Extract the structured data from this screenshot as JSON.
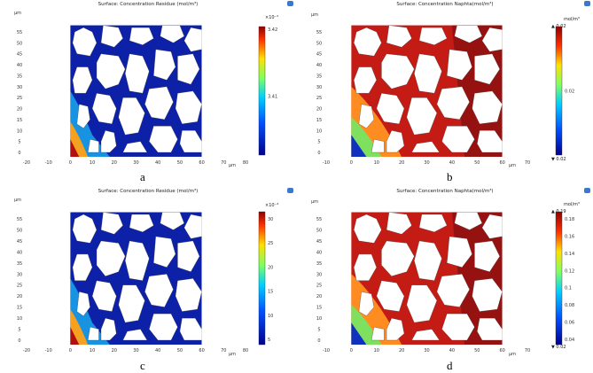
{
  "panels": [
    {
      "id": "a",
      "title": "Surface: Concentration Residue (mol/m³)",
      "unit": "",
      "exponent": "×10⁻²",
      "cb_labels": [
        "3.42",
        "3.41"
      ],
      "cb_min": "",
      "cb_max": "",
      "colormap": "rainbow-blue"
    },
    {
      "id": "b",
      "title": "Surface: Concentration Naphta(mol/m³)",
      "unit": "mol/m³",
      "exponent": "",
      "cb_labels": [
        "0.02"
      ],
      "cb_min": "▼ 0.02",
      "cb_max": "▲ 0.02",
      "colormap": "rainbow-red"
    },
    {
      "id": "c",
      "title": "Surface: Concentration Residue (mol/m³)",
      "unit": "",
      "exponent": "×10⁻³",
      "cb_labels": [
        "30",
        "25",
        "20",
        "15",
        "10",
        "5"
      ],
      "cb_min": "",
      "cb_max": "",
      "colormap": "rainbow-blue"
    },
    {
      "id": "d",
      "title": "Surface: Concentration Naphta(mol/m³)",
      "unit": "mol/m³",
      "exponent": "",
      "cb_labels": [
        "0.18",
        "0.16",
        "0.14",
        "0.12",
        "0.1",
        "0.08",
        "0.06",
        "0.04"
      ],
      "cb_min": "▼ 0.02",
      "cb_max": "▲ 0.19",
      "colormap": "rainbow-red"
    }
  ],
  "axis": {
    "ylabel": "µm",
    "xlabel": "µm",
    "yticks": [
      "55",
      "50",
      "45",
      "40",
      "35",
      "30",
      "25",
      "20",
      "15",
      "10",
      "5",
      "0"
    ],
    "xticks_ac": [
      "-20",
      "-10",
      "0",
      "10",
      "20",
      "30",
      "40",
      "50",
      "60",
      "70",
      "80"
    ],
    "xticks_bd": [
      "-10",
      "0",
      "10",
      "20",
      "30",
      "40",
      "50",
      "60",
      "70"
    ]
  },
  "colors": {
    "deep_blue": "#0a1f9c",
    "red": "#c01818",
    "dark_red": "#8b1010",
    "pore": "#ffffff"
  }
}
